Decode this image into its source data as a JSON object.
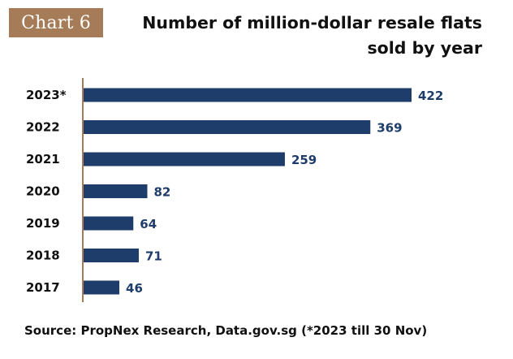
{
  "badge": "Chart 6",
  "chart_data": {
    "type": "bar",
    "orientation": "horizontal",
    "title_line1": "Number of million-dollar resale flats",
    "title_line2": "sold by year",
    "categories": [
      "2023*",
      "2022",
      "2021",
      "2020",
      "2019",
      "2018",
      "2017"
    ],
    "values": [
      422,
      369,
      259,
      82,
      64,
      71,
      46
    ],
    "value_labels": [
      "422",
      "369",
      "259",
      "82",
      "64",
      "71",
      "46"
    ],
    "xlim": [
      0,
      422
    ],
    "grid": false,
    "legend": "none"
  },
  "colors": {
    "bar": "#1f3d6b",
    "axis": "#a67c58",
    "badge_bg": "#a67c58",
    "value_text": "#1f3d6b"
  },
  "source": "Source: PropNex Research, Data.gov.sg (*2023 till 30 Nov)"
}
